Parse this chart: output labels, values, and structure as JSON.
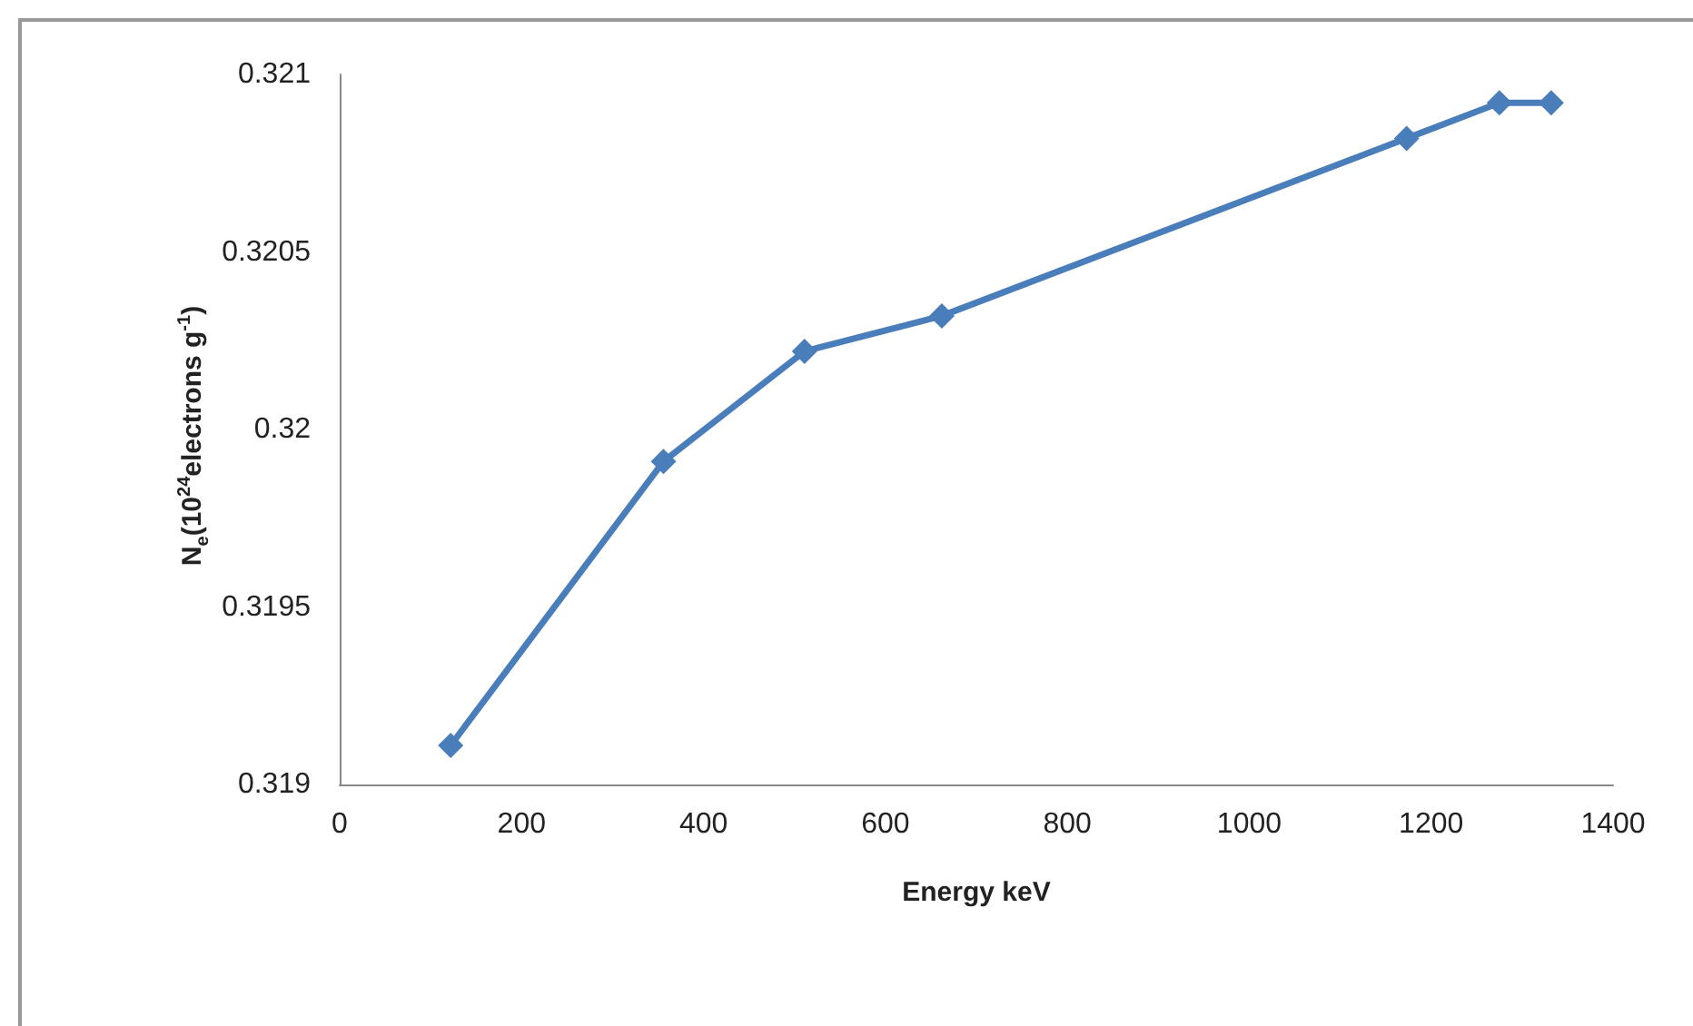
{
  "chart_data": {
    "type": "line",
    "xlabel": "Energy keV",
    "ylabel": "N$_{e}$(10$^{24}$electrons g$^{-1}$)",
    "x": [
      122,
      356,
      511,
      662,
      1173,
      1275,
      1332
    ],
    "series": [
      {
        "color": "#4a7ebb",
        "values": [
          0.31911,
          0.31991,
          0.32022,
          0.32032,
          0.32082,
          0.32092,
          0.32092
        ]
      }
    ],
    "xlim": [
      0,
      1400
    ],
    "xticks": [
      0,
      200,
      400,
      600,
      800,
      1000,
      1200,
      1400
    ],
    "ylim": [
      0.319,
      0.321
    ],
    "yticks": [
      0.319,
      0.3195,
      0.32,
      0.3205,
      0.321
    ],
    "grid": false,
    "marker": "diamond",
    "line_style": "solid"
  }
}
